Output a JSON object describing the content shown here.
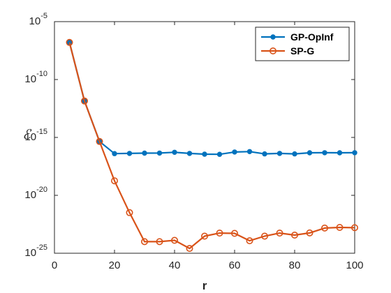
{
  "chart_data": {
    "type": "line",
    "xlabel": "r",
    "ylabel": "ℰ",
    "xlim": [
      0,
      100
    ],
    "ylim_log10": [
      -25,
      -5
    ],
    "y_scale": "log",
    "grid": false,
    "legend_position": "top-right",
    "x_ticks": [
      "0",
      "20",
      "40",
      "60",
      "80",
      "100"
    ],
    "y_ticks": [
      {
        "base": "10",
        "exp": "-5"
      },
      {
        "base": "10",
        "exp": "-10"
      },
      {
        "base": "10",
        "exp": "-15"
      },
      {
        "base": "10",
        "exp": "-20"
      },
      {
        "base": "10",
        "exp": "-25"
      }
    ],
    "x": [
      5,
      10,
      15,
      20,
      25,
      30,
      35,
      40,
      45,
      50,
      55,
      60,
      65,
      70,
      75,
      80,
      85,
      90,
      95,
      100
    ],
    "series": [
      {
        "name": "GP-OpInf",
        "color": "#0072BD",
        "marker": "filled-circle",
        "values": [
          1.6e-07,
          1.4e-12,
          4.5e-16,
          4e-17,
          4.2e-17,
          4.4e-17,
          4.5e-17,
          5.2e-17,
          4.2e-17,
          3.6e-17,
          3.5e-17,
          5.5e-17,
          6e-17,
          3.8e-17,
          4.2e-17,
          3.8e-17,
          4.7e-17,
          4.8e-17,
          4.7e-17,
          4.8e-17
        ]
      },
      {
        "name": "SP-G",
        "color": "#D95319",
        "marker": "open-circle",
        "values": [
          1.6e-07,
          1.4e-12,
          4.5e-16,
          1.8e-19,
          3.2e-22,
          1e-24,
          1e-24,
          1.3e-24,
          2.6e-25,
          3e-24,
          5.5e-24,
          5.2e-24,
          1.2e-24,
          3e-24,
          5.5e-24,
          3.7e-24,
          5.7e-24,
          1.5e-23,
          1.7e-23,
          1.6e-23
        ]
      }
    ]
  }
}
